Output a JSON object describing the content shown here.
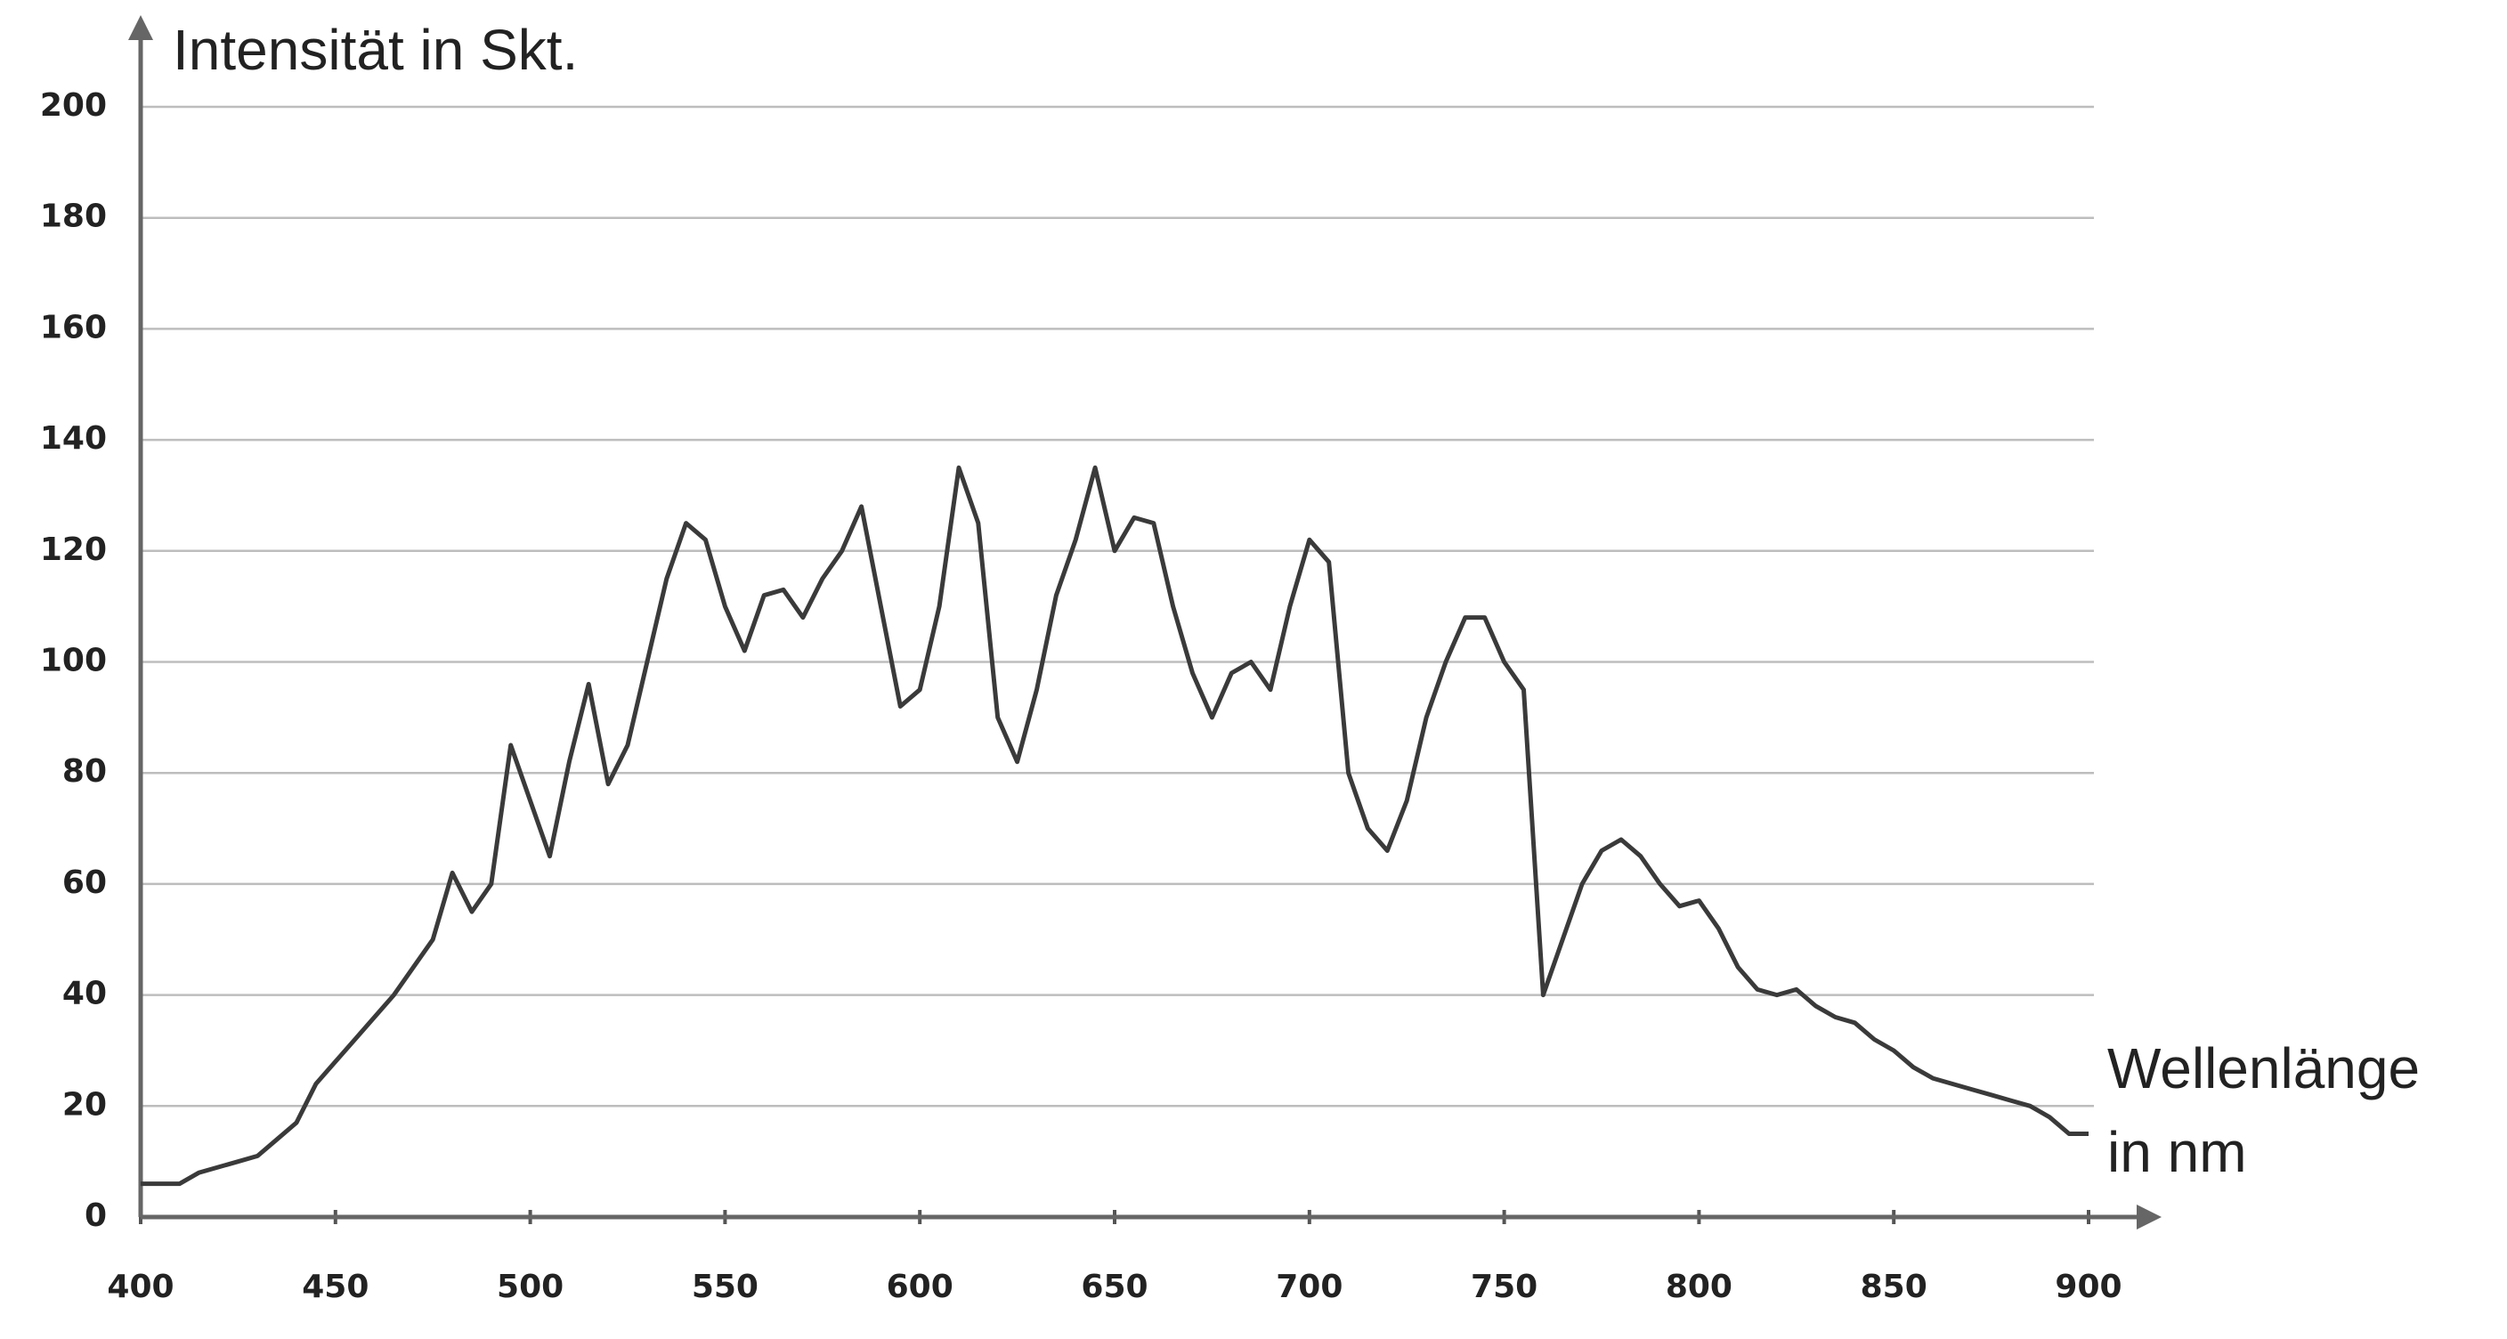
{
  "chart_data": {
    "type": "line",
    "y_label": "Intensität in Skt.",
    "x_label": [
      "Wellenlänge",
      "in nm"
    ],
    "x": [
      400,
      405,
      410,
      415,
      420,
      425,
      430,
      435,
      440,
      445,
      450,
      455,
      460,
      465,
      470,
      475,
      480,
      485,
      490,
      495,
      500,
      505,
      510,
      515,
      520,
      525,
      530,
      535,
      540,
      545,
      550,
      555,
      560,
      565,
      570,
      575,
      580,
      585,
      590,
      595,
      600,
      605,
      610,
      615,
      620,
      625,
      630,
      635,
      640,
      645,
      650,
      655,
      660,
      665,
      670,
      675,
      680,
      685,
      690,
      695,
      700,
      705,
      710,
      715,
      720,
      725,
      730,
      735,
      740,
      745,
      750,
      755,
      760,
      765,
      770,
      775,
      780,
      785,
      790,
      795,
      800,
      805,
      810,
      815,
      820,
      825,
      830,
      835,
      840,
      845,
      850,
      855,
      860,
      865,
      870,
      875,
      880,
      885,
      890,
      895,
      900
    ],
    "series": [
      {
        "color": "#3a3a3a",
        "values": [
          6,
          6,
          6,
          8,
          9,
          10,
          11,
          14,
          17,
          24,
          28,
          32,
          36,
          40,
          45,
          50,
          62,
          55,
          60,
          85,
          75,
          65,
          82,
          96,
          78,
          85,
          100,
          115,
          125,
          122,
          110,
          102,
          112,
          113,
          108,
          115,
          120,
          128,
          110,
          92,
          95,
          110,
          135,
          125,
          90,
          82,
          95,
          112,
          122,
          135,
          120,
          126,
          125,
          110,
          98,
          90,
          98,
          100,
          95,
          110,
          122,
          118,
          80,
          70,
          66,
          75,
          90,
          100,
          108,
          108,
          100,
          95,
          40,
          50,
          60,
          66,
          68,
          65,
          60,
          56,
          57,
          52,
          45,
          41,
          40,
          41,
          38,
          36,
          35,
          32,
          30,
          27,
          25,
          24,
          23,
          22,
          21,
          20,
          18,
          15,
          15
        ]
      }
    ],
    "xlim": [
      400,
      900
    ],
    "ylim": [
      0,
      200
    ],
    "xticks": [
      400,
      450,
      500,
      550,
      600,
      650,
      700,
      750,
      800,
      850,
      900
    ],
    "yticks": [
      0,
      20,
      40,
      60,
      80,
      100,
      120,
      140,
      160,
      180,
      200
    ],
    "grid": true
  }
}
